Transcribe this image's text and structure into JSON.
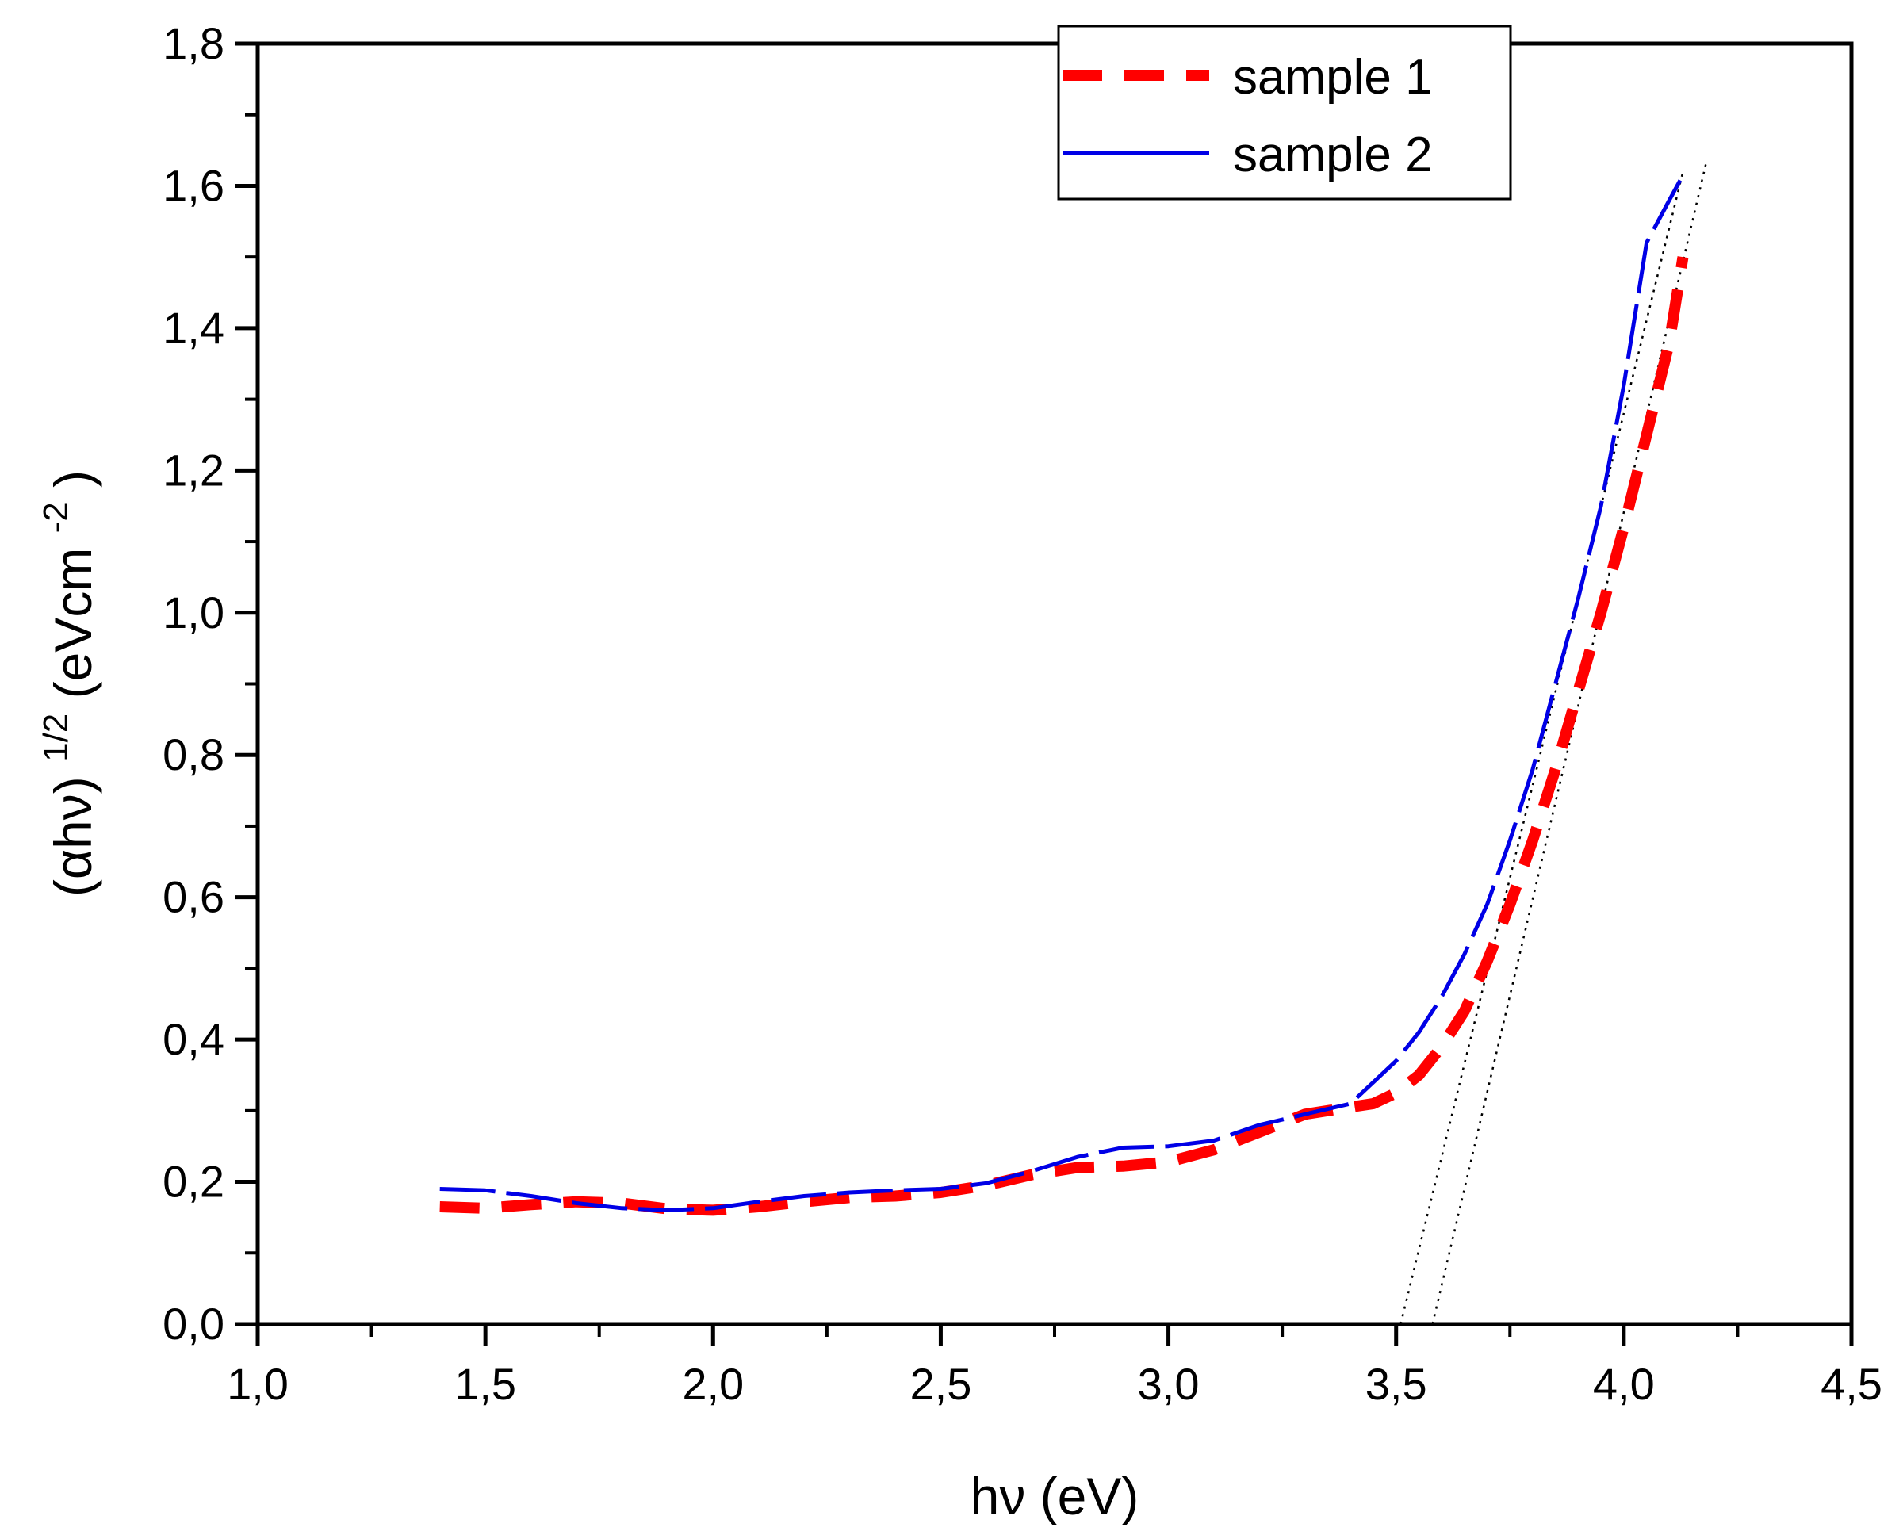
{
  "chart_data": {
    "type": "line",
    "title": "",
    "xlabel": "hν (eV)",
    "ylabel_main": "(αhν)",
    "ylabel_exp": "1/2",
    "ylabel_unit": " (eVcm",
    "ylabel_unit_exp": "-2",
    "ylabel_close": ")",
    "xlim": [
      1.0,
      4.5
    ],
    "ylim": [
      0.0,
      1.8
    ],
    "xticks": [
      1.0,
      1.5,
      2.0,
      2.5,
      3.0,
      3.5,
      4.0,
      4.5
    ],
    "xtick_labels": [
      "1,0",
      "1,5",
      "2,0",
      "2,5",
      "3,0",
      "3,5",
      "4,0",
      "4,5"
    ],
    "yticks": [
      0.0,
      0.2,
      0.4,
      0.6,
      0.8,
      1.0,
      1.2,
      1.4,
      1.6,
      1.8
    ],
    "ytick_labels": [
      "0,0",
      "0,2",
      "0,4",
      "0,6",
      "0,8",
      "1,0",
      "1,2",
      "1,4",
      "1,6",
      "1,8"
    ],
    "legend_position": "top-right",
    "series": [
      {
        "name": "sample 1",
        "color": "#ff0000",
        "style": "dashed",
        "x": [
          1.4,
          1.5,
          1.6,
          1.7,
          1.8,
          1.9,
          2.0,
          2.1,
          2.2,
          2.3,
          2.4,
          2.5,
          2.6,
          2.7,
          2.8,
          2.9,
          3.0,
          3.1,
          3.2,
          3.3,
          3.4,
          3.45,
          3.5,
          3.55,
          3.6,
          3.65,
          3.7,
          3.75,
          3.8,
          3.85,
          3.9,
          3.95,
          4.0,
          4.05,
          4.1,
          4.13
        ],
        "y": [
          0.165,
          0.163,
          0.168,
          0.172,
          0.17,
          0.162,
          0.16,
          0.165,
          0.172,
          0.178,
          0.18,
          0.185,
          0.195,
          0.21,
          0.22,
          0.222,
          0.228,
          0.245,
          0.27,
          0.295,
          0.305,
          0.31,
          0.325,
          0.35,
          0.39,
          0.44,
          0.51,
          0.59,
          0.68,
          0.78,
          0.89,
          1.0,
          1.12,
          1.25,
          1.38,
          1.5
        ]
      },
      {
        "name": "sample 2",
        "color": "#0000e6",
        "style": "solid-dashed",
        "x": [
          1.4,
          1.5,
          1.6,
          1.7,
          1.8,
          1.9,
          2.0,
          2.1,
          2.2,
          2.3,
          2.4,
          2.5,
          2.6,
          2.7,
          2.8,
          2.9,
          3.0,
          3.1,
          3.2,
          3.3,
          3.4,
          3.45,
          3.5,
          3.55,
          3.6,
          3.65,
          3.7,
          3.75,
          3.8,
          3.85,
          3.9,
          3.95,
          4.0,
          4.05,
          4.1,
          4.13
        ],
        "y": [
          0.19,
          0.188,
          0.18,
          0.17,
          0.163,
          0.16,
          0.163,
          0.172,
          0.18,
          0.185,
          0.188,
          0.19,
          0.198,
          0.215,
          0.235,
          0.248,
          0.25,
          0.258,
          0.28,
          0.295,
          0.31,
          0.34,
          0.37,
          0.41,
          0.46,
          0.52,
          0.59,
          0.68,
          0.78,
          0.9,
          1.02,
          1.15,
          1.32,
          1.52,
          1.58,
          1.615
        ]
      }
    ],
    "fit_lines": [
      {
        "name": "tangent-sample-2",
        "x": [
          3.51,
          4.13
        ],
        "y": [
          0.0,
          1.62
        ]
      },
      {
        "name": "tangent-sample-1",
        "x": [
          3.58,
          4.18
        ],
        "y": [
          0.0,
          1.63
        ]
      }
    ]
  }
}
